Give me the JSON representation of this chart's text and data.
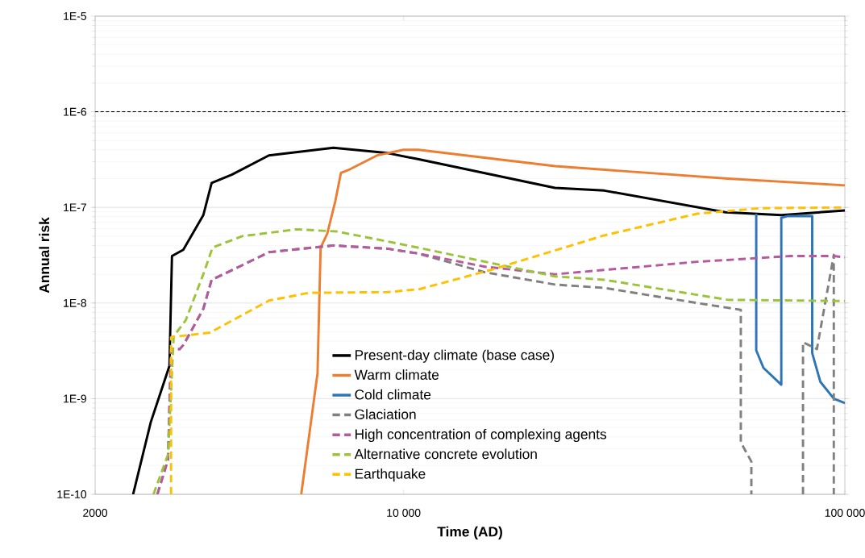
{
  "chart_data": {
    "type": "line",
    "xlabel": "Time (AD)",
    "ylabel": "Annual risk",
    "log": "xy",
    "grid": "y",
    "legend": "bottom",
    "xlim": [
      2000,
      100000
    ],
    "ylim": [
      1e-10,
      1e-05
    ],
    "xticks": [
      2000,
      {
        "value": 10000,
        "label": "10 000"
      },
      {
        "value": 100000,
        "label": "100 000"
      }
    ],
    "yticks": [
      {
        "value": 1e-10,
        "label": "1E-10"
      },
      {
        "value": 1e-09,
        "label": "1E-9"
      },
      {
        "value": 1e-08,
        "label": "1E-8"
      },
      {
        "value": 1e-07,
        "label": "1E-7"
      },
      {
        "value": 1e-06,
        "label": "1E-6"
      },
      {
        "value": 1e-05,
        "label": "1E-5"
      }
    ],
    "ref_lines": [
      {
        "axis": "y",
        "value": 1e-06,
        "color": "#000000",
        "line_style": "dashed"
      }
    ],
    "series": [
      {
        "name": "Present-day climate (base case)",
        "color": "#000000",
        "line_style": "solid",
        "x": [
          2438,
          2674,
          2947,
          2986,
          3168,
          3517,
          3673,
          4080,
          4951,
          6933,
          9204,
          10770,
          22030,
          28500,
          53650,
          71780,
          100000
        ],
        "values": [
          1e-10,
          5.7e-10,
          2.2e-09,
          3.1e-08,
          3.6e-08,
          8.3e-08,
          1.8e-07,
          2.2e-07,
          3.5e-07,
          4.2e-07,
          3.7e-07,
          3.2e-07,
          1.6e-07,
          1.5e-07,
          8.9e-08,
          8.3e-08,
          9.3e-08
        ]
      },
      {
        "name": "Warm climate",
        "color": "#ed7d31",
        "line_style": "solid",
        "x": [
          5862,
          6382,
          6486,
          6713,
          7000,
          7212,
          7551,
          8710,
          10000,
          10810,
          22030,
          54340,
          100000
        ],
        "values": [
          1e-10,
          1.84e-09,
          3.8e-08,
          5.3e-08,
          1.15e-07,
          2.3e-07,
          2.5e-07,
          3.5e-07,
          4e-07,
          4e-07,
          2.7e-07,
          2e-07,
          1.7e-07
        ]
      },
      {
        "name": "Cold climate",
        "color": "#2e75b6",
        "line_style": "solid",
        "x": [
          62970,
          62970,
          65400,
          71780,
          71780,
          74000,
          84330,
          84330,
          88000,
          94400,
          100000
        ],
        "values": [
          8.6e-08,
          3.2e-09,
          2.1e-09,
          1.4e-09,
          7.8e-08,
          8.1e-08,
          8.1e-08,
          3e-09,
          1.5e-09,
          1e-09,
          9e-10
        ]
      },
      {
        "name": "Glaciation",
        "color": "#808080",
        "line_style": "dashed",
        "x": [
          2767,
          2925,
          2972,
          3111,
          3177,
          3517,
          3673,
          4080,
          4951,
          6933,
          9204,
          10770,
          15280,
          22030,
          28500,
          46290,
          58100,
          58100,
          61390,
          61390,
          70000,
          80370,
          80370,
          86420,
          94400,
          94400
        ],
        "values": [
          1e-10,
          2.3e-10,
          3.3e-09,
          3.3e-09,
          3.7e-09,
          8.7e-09,
          1.75e-08,
          2.2e-08,
          3.4e-08,
          4e-08,
          3.7e-08,
          3.3e-08,
          2.1e-08,
          1.56e-08,
          1.44e-08,
          1e-08,
          8.5e-09,
          3.5e-10,
          2.2e-10,
          1e-10,
          null,
          1e-10,
          3.9e-09,
          3.3e-09,
          3.2e-08,
          1e-10
        ]
      },
      {
        "name": "High concentration of complexing agents",
        "color": "#b55a9f",
        "line_style": "dashed",
        "x": [
          2767,
          2925,
          2972,
          3111,
          3177,
          3517,
          3673,
          4080,
          4951,
          6933,
          9204,
          10770,
          15280,
          22030,
          46290,
          75170,
          94400,
          100000
        ],
        "values": [
          1e-10,
          2.3e-10,
          3.3e-09,
          3.3e-09,
          3.7e-09,
          8.7e-09,
          1.75e-08,
          2.2e-08,
          3.4e-08,
          4e-08,
          3.7e-08,
          3.3e-08,
          2.4e-08,
          2e-08,
          2.7e-08,
          3.1e-08,
          3.1e-08,
          3e-08
        ]
      },
      {
        "name": "Alternative concrete evolution",
        "color": "#9bc43b",
        "line_style": "dashed",
        "x": [
          2711,
          2925,
          3013,
          3208,
          3517,
          3690,
          4309,
          5716,
          7058,
          9204,
          10770,
          22030,
          28500,
          54340,
          100000
        ],
        "values": [
          1e-10,
          2.6e-10,
          4.5e-09,
          6.6e-09,
          2e-08,
          3.8e-08,
          5e-08,
          5.9e-08,
          5.6e-08,
          4.4e-08,
          3.8e-08,
          1.9e-08,
          1.75e-08,
          1.08e-08,
          1.05e-08
        ]
      },
      {
        "name": "Earthquake",
        "color": "#ffc000",
        "line_style": "dashed",
        "x": [
          2972,
          2972,
          3640,
          4951,
          6110,
          9204,
          10890,
          15930,
          28500,
          46290,
          64000,
          100000
        ],
        "values": [
          1e-10,
          4.4e-09,
          4.9e-09,
          1.06e-08,
          1.28e-08,
          1.3e-08,
          1.4e-08,
          2.25e-08,
          5.1e-08,
          8.6e-08,
          9.8e-08,
          1e-07
        ]
      }
    ]
  }
}
